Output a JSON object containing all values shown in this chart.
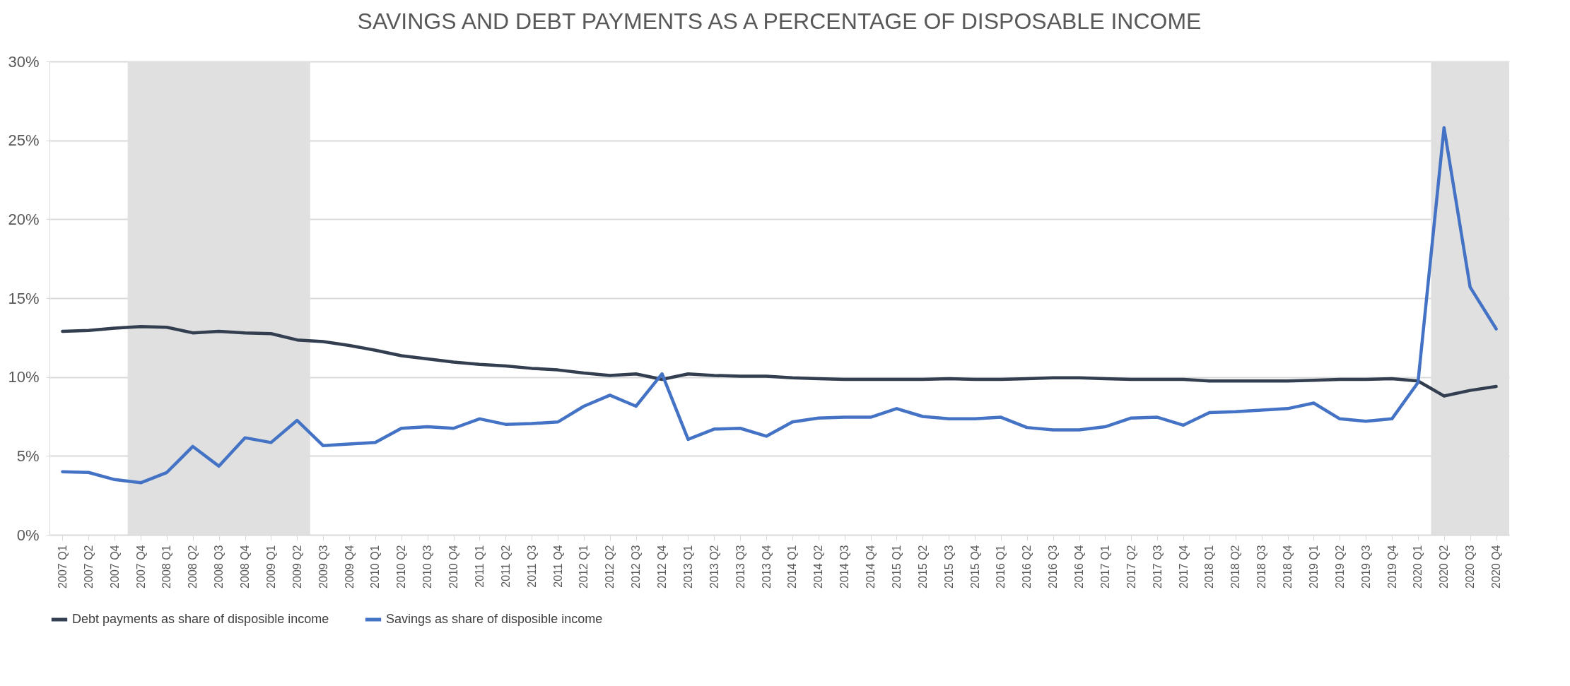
{
  "chart_data": {
    "type": "line",
    "title": "SAVINGS AND DEBT PAYMENTS AS A PERCENTAGE OF DISPOSABLE INCOME",
    "categories": [
      "2007 Q1",
      "2007 Q2",
      "2007 Q4",
      "2007 Q4",
      "2008 Q1",
      "2008 Q2",
      "2008 Q3",
      "2008 Q4",
      "2009 Q1",
      "2009 Q2",
      "2009 Q3",
      "2009 Q4",
      "2010 Q1",
      "2010 Q2",
      "2010 Q3",
      "2010 Q4",
      "2011 Q1",
      "2011 Q2",
      "2011 Q3",
      "2011 Q4",
      "2012 Q1",
      "2012 Q2",
      "2012 Q3",
      "2012 Q4",
      "2013 Q1",
      "2013 Q2",
      "2013 Q3",
      "2013 Q4",
      "2014 Q1",
      "2014 Q2",
      "2014 Q3",
      "2014 Q4",
      "2015 Q1",
      "2015 Q2",
      "2015 Q3",
      "2015 Q4",
      "2016 Q1",
      "2016 Q2",
      "2016 Q3",
      "2016 Q4",
      "2017 Q1",
      "2017 Q2",
      "2017 Q3",
      "2017 Q4",
      "2018 Q1",
      "2018 Q2",
      "2018 Q3",
      "2018 Q4",
      "2019 Q1",
      "2019 Q2",
      "2019 Q3",
      "2019 Q4",
      "2020 Q1",
      "2020 Q2",
      "2020 Q3",
      "2020 Q4"
    ],
    "series": [
      {
        "name": "Debt payments as share of disposible income",
        "color": "#333f50",
        "values": [
          12.9,
          12.95,
          13.1,
          13.2,
          13.15,
          12.8,
          12.9,
          12.8,
          12.75,
          12.35,
          12.25,
          12.0,
          11.7,
          11.35,
          11.15,
          10.95,
          10.8,
          10.7,
          10.55,
          10.45,
          10.25,
          10.1,
          10.2,
          9.85,
          10.2,
          10.1,
          10.05,
          10.05,
          9.95,
          9.9,
          9.85,
          9.85,
          9.85,
          9.85,
          9.9,
          9.85,
          9.85,
          9.9,
          9.95,
          9.95,
          9.9,
          9.85,
          9.85,
          9.85,
          9.75,
          9.75,
          9.75,
          9.75,
          9.8,
          9.85,
          9.85,
          9.9,
          9.75,
          8.8,
          9.15,
          9.4
        ]
      },
      {
        "name": "Savings as share of disposible income",
        "color": "#4472c4",
        "values": [
          4.0,
          3.95,
          3.5,
          3.3,
          3.95,
          5.6,
          4.35,
          6.15,
          5.85,
          7.25,
          5.65,
          5.75,
          5.85,
          6.75,
          6.85,
          6.75,
          7.35,
          7.0,
          7.05,
          7.15,
          8.15,
          8.85,
          8.15,
          10.2,
          6.05,
          6.7,
          6.75,
          6.25,
          7.15,
          7.4,
          7.45,
          7.45,
          8.0,
          7.5,
          7.35,
          7.35,
          7.45,
          6.8,
          6.65,
          6.65,
          6.85,
          7.4,
          7.45,
          6.95,
          7.75,
          7.8,
          7.9,
          8.0,
          8.35,
          7.35,
          7.2,
          7.35,
          9.65,
          25.8,
          15.7,
          13.05
        ]
      }
    ],
    "ylim": [
      0,
      30
    ],
    "yticks": [
      {
        "value": 0,
        "label": "0%"
      },
      {
        "value": 5,
        "label": "5%"
      },
      {
        "value": 10,
        "label": "10%"
      },
      {
        "value": 15,
        "label": "15%"
      },
      {
        "value": 20,
        "label": "20%"
      },
      {
        "value": 25,
        "label": "25%"
      },
      {
        "value": 30,
        "label": "30%"
      }
    ],
    "bands": [
      {
        "axis": "x",
        "from": "2007 Q4",
        "to": "2009 Q2",
        "color": "#e0e0e0"
      },
      {
        "axis": "x",
        "from": "2020 Q2",
        "to": "2020 Q4",
        "color": "#e0e0e0"
      }
    ],
    "grid": "y",
    "legend": "bottom",
    "marker": "none",
    "line_style": "solid"
  }
}
